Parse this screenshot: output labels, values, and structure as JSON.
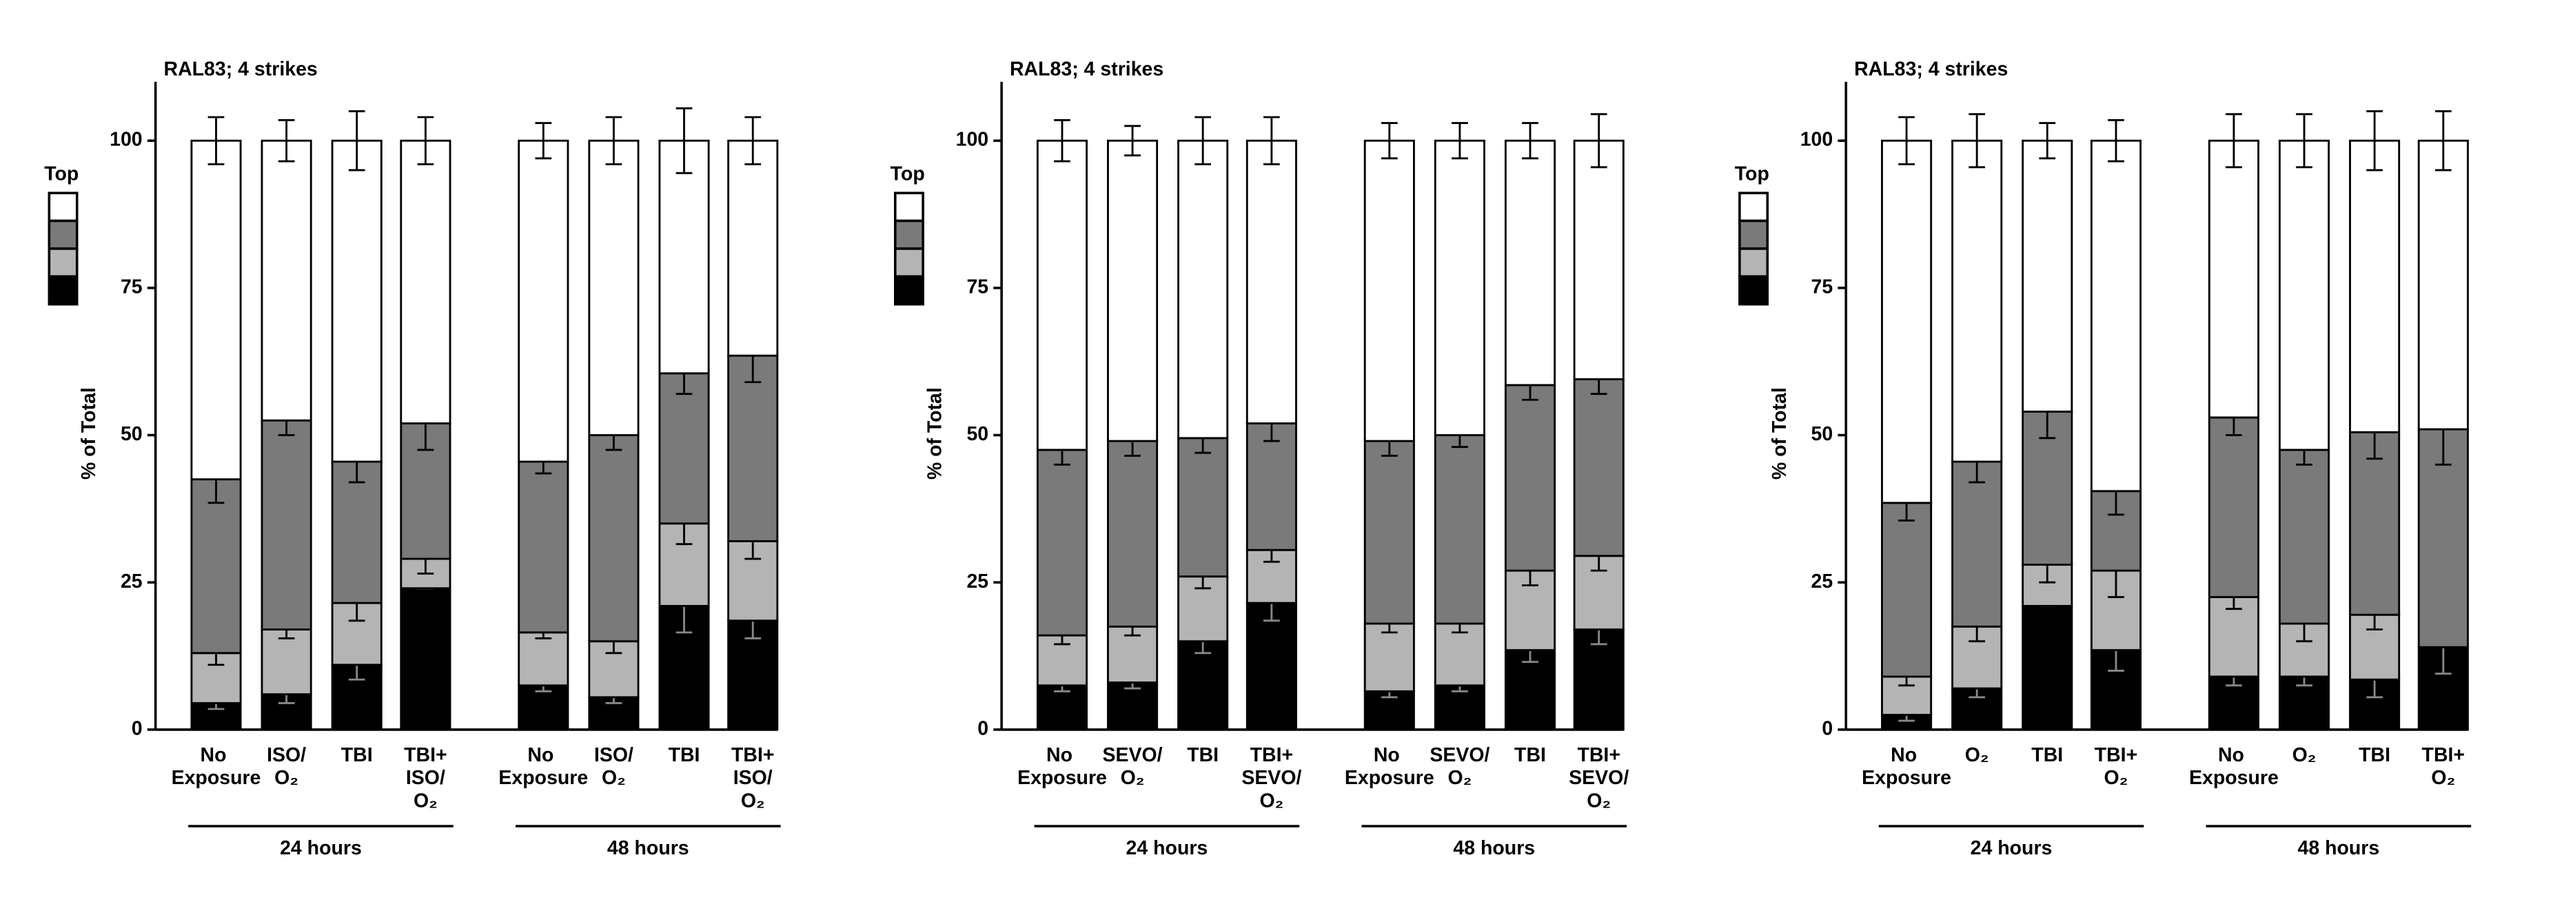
{
  "chart_data": [
    {
      "type": "stacked_bar",
      "title": "RAL83; 4 strikes",
      "y_label": "% of Total",
      "legend_title": "Top",
      "categories": [
        "No Exposure",
        "ISO/O₂",
        "TBI",
        "TBI+ISO/O₂",
        "No Exposure",
        "ISO/O₂",
        "TBI",
        "TBI+ISO/O₂"
      ],
      "groups": [
        "24 hours",
        "48 hours"
      ],
      "ylim": [
        0,
        110
      ],
      "yticks": [
        0,
        25,
        50,
        75,
        100
      ],
      "series": [
        {
          "color": "#000000",
          "values": [
            4.5,
            6,
            11,
            24,
            7.5,
            5.5,
            21,
            18.5
          ],
          "errors": [
            1,
            1.5,
            2.5,
            0,
            1,
            1,
            4.5,
            3
          ]
        },
        {
          "color": "#b4b4b4",
          "values": [
            8.5,
            11,
            10.5,
            5,
            9,
            9.5,
            14,
            13.5
          ],
          "errors": [
            2,
            1.5,
            3,
            2.5,
            1,
            2,
            3.5,
            3
          ]
        },
        {
          "color": "#7a7a7a",
          "values": [
            29.5,
            35.5,
            24,
            23,
            29,
            35,
            25.5,
            31.5
          ],
          "errors": [
            4,
            2.5,
            3.5,
            4.5,
            2,
            2.5,
            3.5,
            4.5
          ]
        },
        {
          "color": "#ffffff",
          "values": [
            57.5,
            47.5,
            54.5,
            48,
            54.5,
            50,
            39.5,
            36.5
          ],
          "errors": [
            4,
            3.5,
            5,
            4,
            3,
            4,
            5.5,
            4
          ]
        }
      ]
    },
    {
      "type": "stacked_bar",
      "title": "RAL83; 4 strikes",
      "y_label": "% of Total",
      "legend_title": "Top",
      "categories": [
        "No Exposure",
        "SEVO/O₂",
        "TBI",
        "TBI+SEVO/O₂",
        "No Exposure",
        "SEVO/O₂",
        "TBI",
        "TBI+SEVO/O₂"
      ],
      "groups": [
        "24 hours",
        "48 hours"
      ],
      "ylim": [
        0,
        110
      ],
      "yticks": [
        0,
        25,
        50,
        75,
        100
      ],
      "series": [
        {
          "color": "#000000",
          "values": [
            7.5,
            8,
            15,
            21.5,
            6.5,
            7.5,
            13.5,
            17
          ],
          "errors": [
            1,
            1,
            2,
            3,
            1,
            1,
            2,
            2.5
          ]
        },
        {
          "color": "#b4b4b4",
          "values": [
            8.5,
            9.5,
            11,
            9,
            11.5,
            10.5,
            13.5,
            12.5
          ],
          "errors": [
            1.5,
            1.5,
            2,
            2,
            1.5,
            1.5,
            2.5,
            2.5
          ]
        },
        {
          "color": "#7a7a7a",
          "values": [
            31.5,
            31.5,
            23.5,
            21.5,
            31,
            32,
            31.5,
            30
          ],
          "errors": [
            2.5,
            2.5,
            2.5,
            3,
            2.5,
            2,
            2.5,
            2.5
          ]
        },
        {
          "color": "#ffffff",
          "values": [
            52.5,
            51,
            50.5,
            48,
            51,
            50,
            41.5,
            40.5
          ],
          "errors": [
            3.5,
            2.5,
            4,
            4,
            3,
            3,
            3,
            4.5
          ]
        }
      ]
    },
    {
      "type": "stacked_bar",
      "title": "RAL83; 4 strikes",
      "y_label": "% of Total",
      "legend_title": "Top",
      "categories": [
        "No Exposure",
        "O₂",
        "TBI",
        "TBI+O₂",
        "No Exposure",
        "O₂",
        "TBI",
        "TBI+O₂"
      ],
      "groups": [
        "24 hours",
        "48 hours"
      ],
      "ylim": [
        0,
        110
      ],
      "yticks": [
        0,
        25,
        50,
        75,
        100
      ],
      "series": [
        {
          "color": "#000000",
          "values": [
            2.5,
            7,
            21,
            13.5,
            9,
            9,
            8.5,
            14
          ],
          "errors": [
            1,
            1.5,
            0,
            3.5,
            1.5,
            1.5,
            3,
            4.5
          ]
        },
        {
          "color": "#b4b4b4",
          "values": [
            6.5,
            10.5,
            7,
            13.5,
            13.5,
            9,
            11,
            0
          ],
          "errors": [
            1.5,
            2.5,
            3,
            4.5,
            2,
            3,
            2.5,
            0
          ]
        },
        {
          "color": "#7a7a7a",
          "values": [
            29.5,
            28,
            26,
            13.5,
            30.5,
            29.5,
            31,
            37
          ],
          "errors": [
            3,
            3.5,
            4.5,
            4,
            3,
            2.5,
            4.5,
            6
          ]
        },
        {
          "color": "#ffffff",
          "values": [
            61.5,
            54.5,
            46,
            59.5,
            47,
            52.5,
            49.5,
            49
          ],
          "errors": [
            4,
            4.5,
            3,
            3.5,
            4.5,
            4.5,
            5,
            5
          ]
        }
      ]
    }
  ]
}
